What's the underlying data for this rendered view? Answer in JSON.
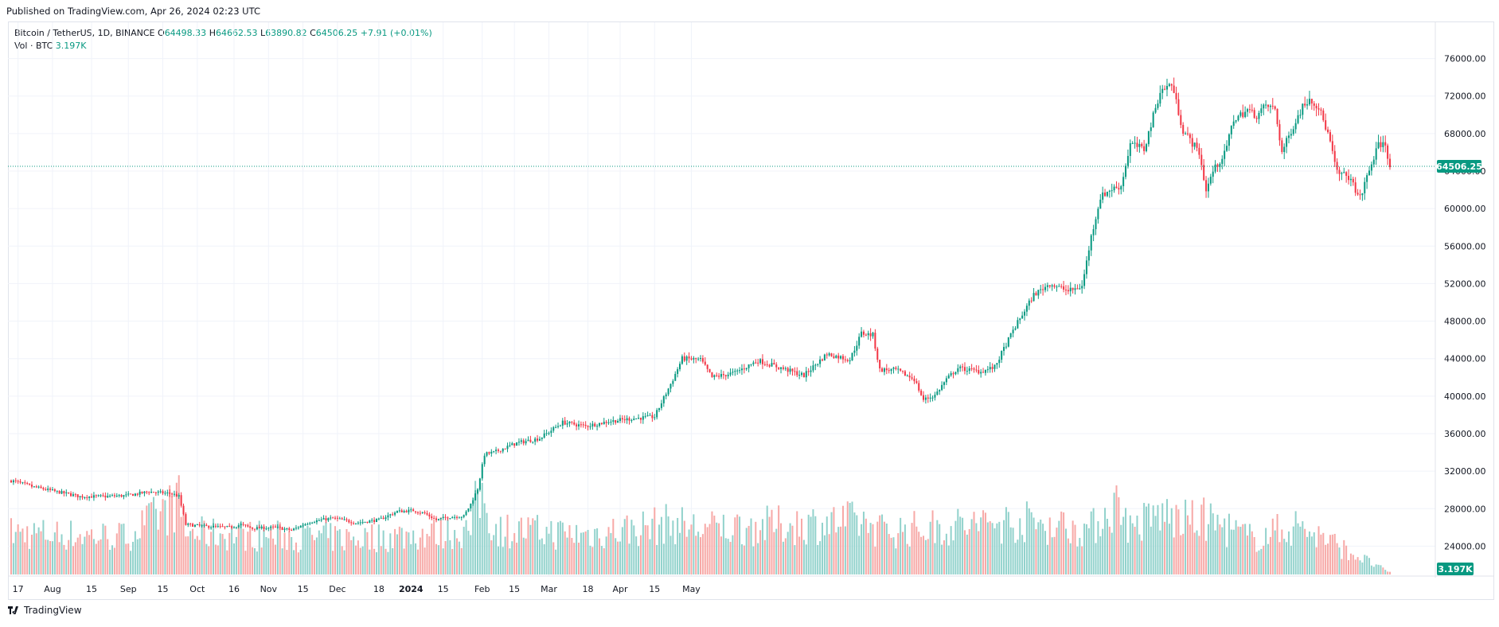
{
  "header": {
    "published": "Published on TradingView.com, Apr 26, 2024 02:23 UTC"
  },
  "legend": {
    "symbol": "Bitcoin / TetherUS, 1D, BINANCE",
    "open_label": "O",
    "open": "64498.33",
    "high_label": "H",
    "high": "64662.53",
    "low_label": "L",
    "low": "63890.82",
    "close_label": "C",
    "close": "64506.25",
    "change": "+7.91 (+0.01%)",
    "volume_label": "Vol · BTC",
    "volume": "3.197K"
  },
  "footer": {
    "brand": "TradingView"
  },
  "colors": {
    "up": "#089981",
    "down": "#f23645",
    "vol_up": "#92d2cc",
    "vol_down": "#f7a9a7",
    "grid": "#f0f3fa"
  },
  "chart_data": {
    "type": "candlestick",
    "y_axis": {
      "min": 22000,
      "max": 78000,
      "ticks": [
        24000,
        28000,
        32000,
        36000,
        40000,
        44000,
        48000,
        52000,
        56000,
        60000,
        64000,
        68000,
        72000,
        76000
      ],
      "tick_labels": [
        "24000.00",
        "28000.00",
        "32000.00",
        "36000.00",
        "40000.00",
        "44000.00",
        "48000.00",
        "52000.00",
        "56000.00",
        "60000.00",
        "64000.00",
        "68000.00",
        "72000.00",
        "76000.00"
      ]
    },
    "x_axis": {
      "ticks": [
        "17",
        "Aug",
        "15",
        "Sep",
        "15",
        "Oct",
        "16",
        "Nov",
        "15",
        "Dec",
        "18",
        "2024",
        "15",
        "Feb",
        "15",
        "Mar",
        "18",
        "Apr",
        "15",
        "May"
      ]
    },
    "last_price": "64506.25",
    "last_volume": "3.197K",
    "grid": true,
    "keypoints": [
      [
        0,
        31000
      ],
      [
        10,
        30300
      ],
      [
        20,
        29800
      ],
      [
        30,
        29300
      ],
      [
        40,
        29300
      ],
      [
        50,
        29400
      ],
      [
        60,
        29800
      ],
      [
        70,
        29600
      ],
      [
        73,
        29300
      ],
      [
        76,
        26300
      ],
      [
        85,
        26100
      ],
      [
        95,
        26000
      ],
      [
        100,
        26300
      ],
      [
        105,
        25900
      ],
      [
        115,
        26000
      ],
      [
        122,
        25700
      ],
      [
        130,
        26600
      ],
      [
        140,
        27000
      ],
      [
        150,
        26500
      ],
      [
        160,
        26800
      ],
      [
        168,
        27700
      ],
      [
        175,
        27800
      ],
      [
        180,
        27500
      ],
      [
        185,
        26800
      ],
      [
        190,
        27100
      ],
      [
        197,
        27200
      ],
      [
        200,
        28500
      ],
      [
        203,
        30100
      ],
      [
        206,
        33800
      ],
      [
        210,
        34000
      ],
      [
        220,
        35000
      ],
      [
        230,
        35500
      ],
      [
        240,
        37200
      ],
      [
        250,
        36800
      ],
      [
        260,
        37300
      ],
      [
        270,
        37600
      ],
      [
        280,
        37800
      ],
      [
        288,
        41800
      ],
      [
        292,
        44000
      ],
      [
        300,
        43900
      ],
      [
        305,
        42000
      ],
      [
        315,
        42500
      ],
      [
        325,
        43800
      ],
      [
        335,
        43000
      ],
      [
        345,
        42200
      ],
      [
        355,
        44500
      ],
      [
        365,
        43900
      ],
      [
        370,
        46700
      ],
      [
        375,
        46500
      ],
      [
        378,
        42800
      ],
      [
        385,
        42800
      ],
      [
        393,
        41800
      ],
      [
        397,
        39600
      ],
      [
        402,
        40100
      ],
      [
        407,
        41800
      ],
      [
        412,
        43000
      ],
      [
        422,
        42600
      ],
      [
        428,
        43100
      ],
      [
        436,
        47000
      ],
      [
        445,
        50800
      ],
      [
        452,
        52000
      ],
      [
        460,
        51200
      ],
      [
        466,
        51700
      ],
      [
        470,
        57000
      ],
      [
        474,
        61200
      ],
      [
        478,
        62000
      ],
      [
        483,
        62400
      ],
      [
        487,
        66900
      ],
      [
        493,
        66300
      ],
      [
        500,
        72500
      ],
      [
        505,
        73300
      ],
      [
        510,
        68300
      ],
      [
        517,
        66000
      ],
      [
        520,
        61900
      ],
      [
        523,
        64000
      ],
      [
        528,
        65800
      ],
      [
        532,
        69500
      ],
      [
        538,
        70500
      ],
      [
        542,
        69900
      ],
      [
        546,
        71000
      ],
      [
        550,
        70600
      ],
      [
        553,
        66000
      ],
      [
        557,
        68300
      ],
      [
        562,
        70900
      ],
      [
        565,
        71800
      ],
      [
        569,
        70800
      ],
      [
        573,
        68000
      ],
      [
        577,
        63800
      ],
      [
        582,
        63400
      ],
      [
        587,
        61100
      ],
      [
        590,
        63400
      ],
      [
        595,
        66800
      ],
      [
        598,
        66900
      ],
      [
        600,
        64500
      ]
    ],
    "volume_keypoints": [
      [
        0,
        22000
      ],
      [
        50,
        20000
      ],
      [
        73,
        38000
      ],
      [
        76,
        22000
      ],
      [
        100,
        21000
      ],
      [
        150,
        19000
      ],
      [
        200,
        23000
      ],
      [
        203,
        42000
      ],
      [
        206,
        40000
      ],
      [
        210,
        24000
      ],
      [
        250,
        21000
      ],
      [
        288,
        27000
      ],
      [
        300,
        24000
      ],
      [
        370,
        28000
      ],
      [
        380,
        23000
      ],
      [
        440,
        28000
      ],
      [
        470,
        24000
      ],
      [
        478,
        35000
      ],
      [
        483,
        38000
      ],
      [
        487,
        24000
      ],
      [
        500,
        32000
      ],
      [
        510,
        28000
      ],
      [
        520,
        29000
      ],
      [
        540,
        19000
      ],
      [
        560,
        26000
      ],
      [
        600,
        1000
      ]
    ],
    "volume_scale_max": 60000,
    "x_tick_days": [
      3,
      18,
      35,
      51,
      66,
      81,
      97,
      112,
      127,
      142,
      160,
      174,
      188,
      205,
      219,
      234,
      251,
      265,
      280,
      296
    ]
  }
}
